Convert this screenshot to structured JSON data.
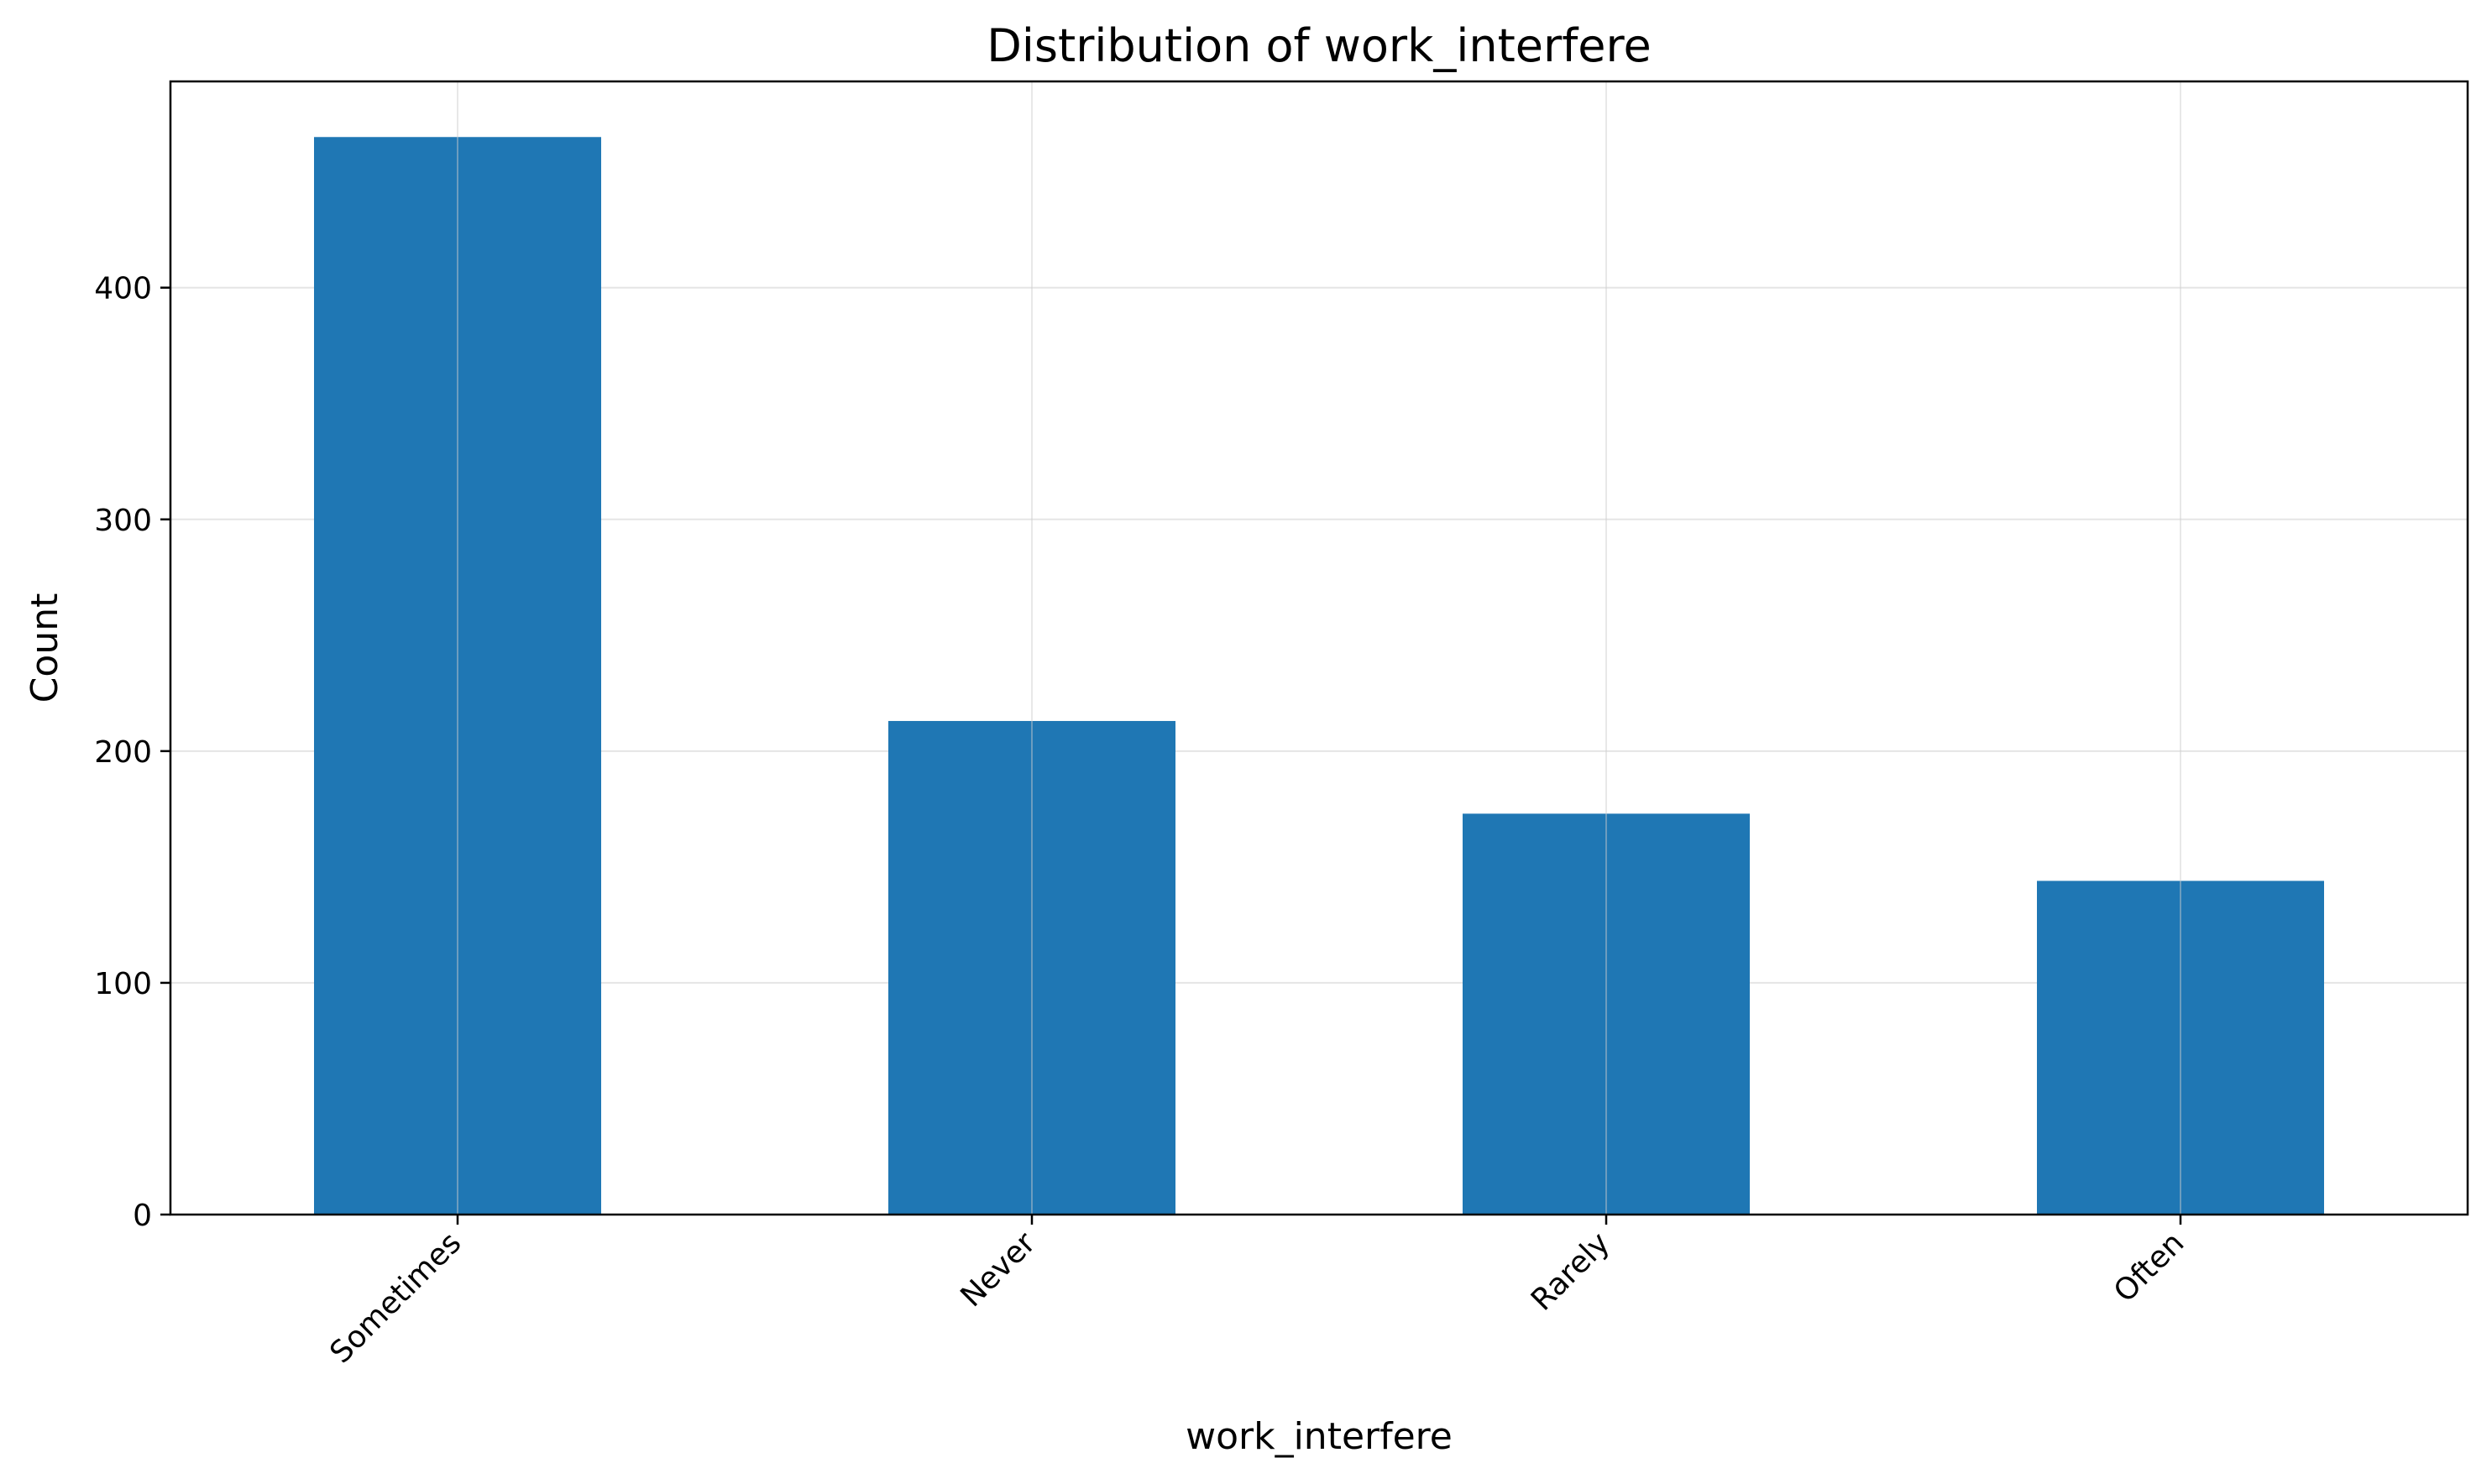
{
  "chart_data": {
    "type": "bar",
    "title": "Distribution of work_interfere",
    "xlabel": "work_interfere",
    "ylabel": "Count",
    "categories": [
      "Sometimes",
      "Never",
      "Rarely",
      "Often"
    ],
    "values": [
      465,
      213,
      173,
      144
    ],
    "ylim": [
      0,
      489
    ],
    "yticks": [
      0,
      100,
      200,
      300,
      400
    ],
    "grid": true,
    "legend": "none",
    "bar_color": "#1f77b4",
    "grid_color": "#e5e5e5",
    "axis_color": "#000000"
  }
}
